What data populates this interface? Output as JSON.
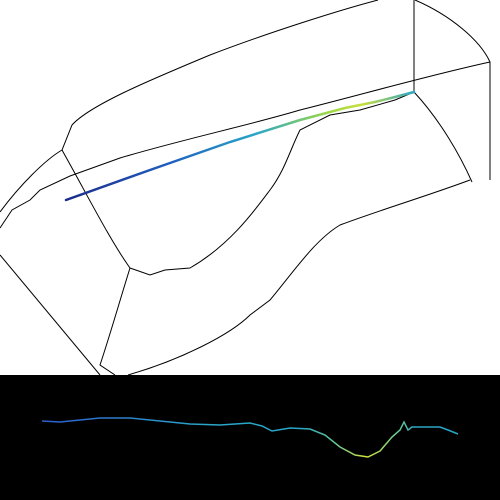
{
  "view3d": {
    "background": "#ffffff",
    "wireframe_color": "#000000",
    "track_colormap": [
      "#1a2a8a",
      "#1f5fbf",
      "#2aa6c8",
      "#5fc89a",
      "#c8e03a"
    ]
  },
  "profile_panel": {
    "background": "#000000",
    "colormap": [
      "#2a5fd0",
      "#2aa6c8",
      "#5fc89a",
      "#d6e23a"
    ]
  }
}
